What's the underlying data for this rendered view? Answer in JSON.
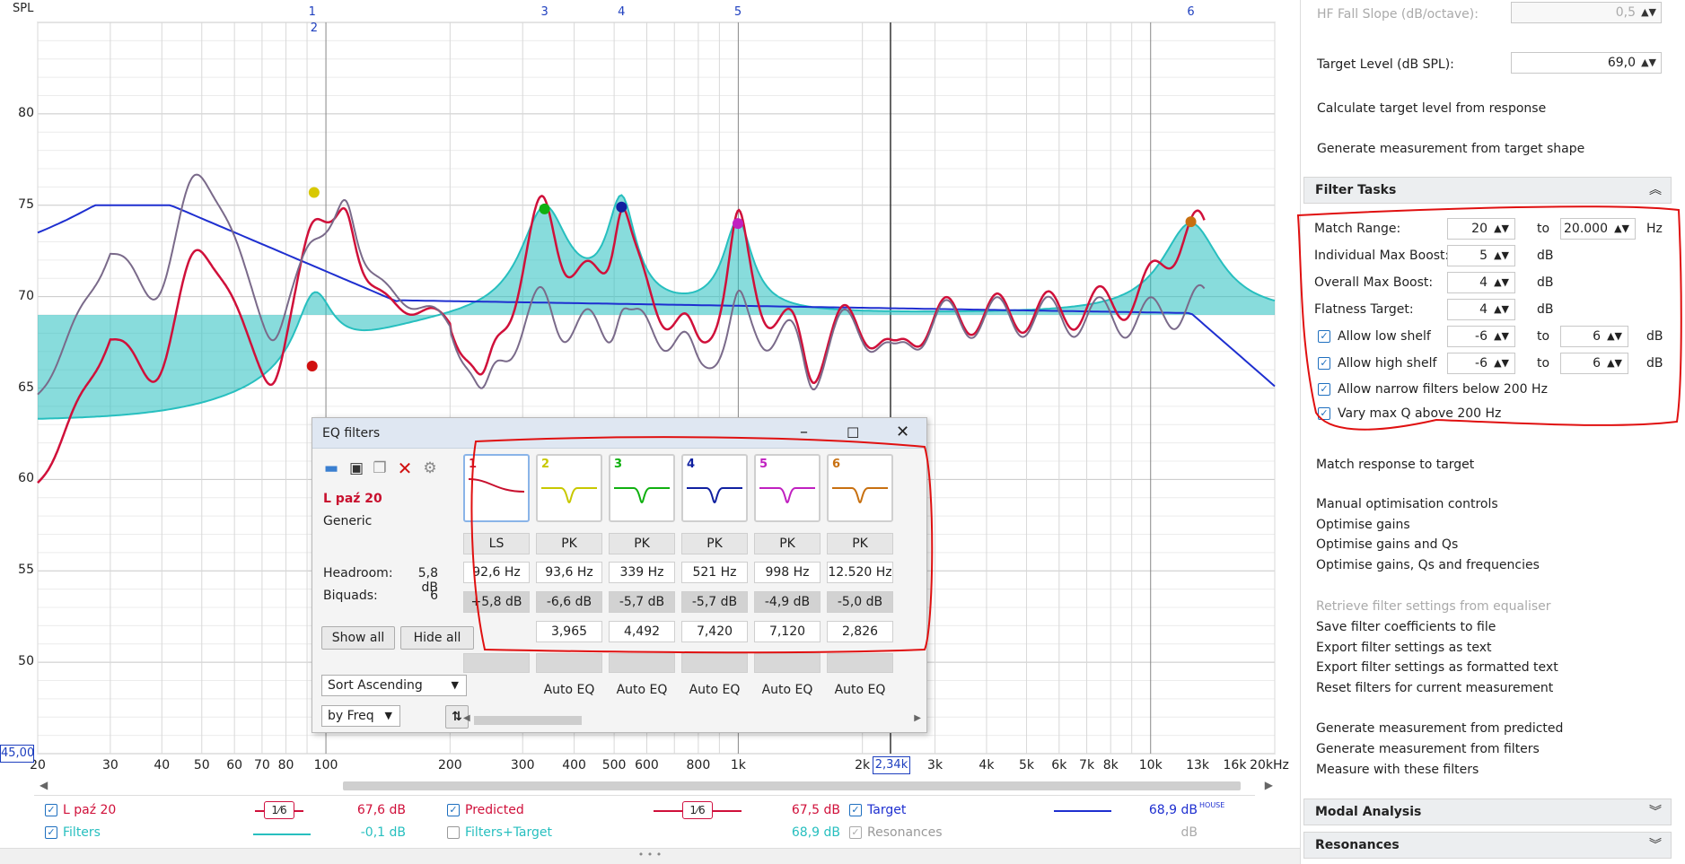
{
  "graph": {
    "y_axis_title": "SPL",
    "y_ticks": [
      "80",
      "75",
      "70",
      "65",
      "60",
      "55",
      "50"
    ],
    "y_min_box": "45,00",
    "x_ticks": [
      "20",
      "30",
      "40",
      "50",
      "60",
      "70",
      "80",
      "100",
      "200",
      "300",
      "400",
      "500",
      "600",
      "800",
      "1k",
      "2k",
      "3k",
      "4k",
      "5k",
      "6k",
      "7k",
      "8k",
      "10k",
      "13k",
      "16k",
      "20kHz"
    ],
    "cursor_x": "2,34k",
    "markers": [
      "1",
      "2",
      "3",
      "4",
      "5",
      "6"
    ],
    "colors": {
      "measurement": "#d0103a",
      "filters": "#27bfbf",
      "target": "#1e2fd0",
      "predicted": "#7a6a8a"
    }
  },
  "legend": {
    "row1": [
      {
        "label": "L paź 20",
        "checked": true,
        "smoothing": "1⁄6",
        "value": "67,6 dB",
        "color": "#d0103a"
      },
      {
        "label": "Predicted",
        "checked": true,
        "smoothing": "1⁄6",
        "value": "67,5 dB",
        "color": "#d0103a"
      },
      {
        "label": "Target",
        "checked": true,
        "value": "68,9 dB",
        "suffix": "HOUSE",
        "color": "#1e2fd0"
      }
    ],
    "row2": [
      {
        "label": "Filters",
        "checked": true,
        "value": "-0,1 dB",
        "color": "#27bfbf"
      },
      {
        "label": "Filters+Target",
        "checked": false,
        "value": "68,9 dB",
        "color": "#27bfbf"
      },
      {
        "label": "Resonances",
        "checked": true,
        "value": "dB",
        "color": "#999999"
      }
    ]
  },
  "eq_dialog": {
    "title": "EQ filters",
    "meas_name": "L paź 20",
    "meas_type": "Generic",
    "headroom_label": "Headroom:",
    "headroom_value": "5,8 dB",
    "biquads_label": "Biquads:",
    "biquads_value": "6",
    "show_all": "Show all",
    "hide_all": "Hide all",
    "sort_select": "Sort Ascending",
    "by_select": "by Freq",
    "filters": [
      {
        "num": "1",
        "color": "#c8102e",
        "type": "LS",
        "freq": "92,6 Hz",
        "gain": "+5,8 dB",
        "q": "",
        "auto": ""
      },
      {
        "num": "2",
        "color": "#c8c800",
        "type": "PK",
        "freq": "93,6 Hz",
        "gain": "-6,6 dB",
        "q": "3,965",
        "auto": "Auto EQ"
      },
      {
        "num": "3",
        "color": "#10b010",
        "type": "PK",
        "freq": "339 Hz",
        "gain": "-5,7 dB",
        "q": "4,492",
        "auto": "Auto EQ"
      },
      {
        "num": "4",
        "color": "#1020a0",
        "type": "PK",
        "freq": "521 Hz",
        "gain": "-5,7 dB",
        "q": "7,420",
        "auto": "Auto EQ"
      },
      {
        "num": "5",
        "color": "#c020c0",
        "type": "PK",
        "freq": "998 Hz",
        "gain": "-4,9 dB",
        "q": "7,120",
        "auto": "Auto EQ"
      },
      {
        "num": "6",
        "color": "#c87010",
        "type": "PK",
        "freq": "12.520 Hz",
        "gain": "-5,0 dB",
        "q": "2,826",
        "auto": "Auto EQ"
      }
    ]
  },
  "right_panel": {
    "hf_fall_label": "HF Fall Slope (dB/octave):",
    "hf_fall_value": "0,5",
    "target_level_label": "Target Level (dB SPL):",
    "target_level_value": "69,0",
    "calc_target": "Calculate target level from response",
    "gen_from_target": "Generate measurement from target shape",
    "filter_tasks": "Filter Tasks",
    "match_range_label": "Match Range:",
    "match_from": "20",
    "to1": "to",
    "match_to": "20.000",
    "hz": "Hz",
    "ind_boost_label": "Individual Max Boost:",
    "ind_boost": "5",
    "overall_boost_label": "Overall Max Boost:",
    "overall_boost": "4",
    "flatness_label": "Flatness Target:",
    "flatness": "4",
    "db": "dB",
    "low_shelf_label": "Allow low shelf",
    "low_from": "-6",
    "low_to": "6",
    "high_shelf_label": "Allow high shelf",
    "high_from": "-6",
    "high_to": "6",
    "narrow_label": "Allow narrow filters below 200 Hz",
    "vary_q_label": "Vary max Q above 200 Hz",
    "match_response": "Match response to target",
    "manual_opt": "Manual optimisation controls",
    "opt_gains": "Optimise gains",
    "opt_gains_q": "Optimise gains and Qs",
    "opt_gains_q_f": "Optimise gains, Qs and frequencies",
    "retrieve": "Retrieve filter settings from equaliser",
    "save_coeffs": "Save filter coefficients to file",
    "export_text": "Export filter settings as text",
    "export_fmt": "Export filter settings as formatted text",
    "reset": "Reset filters for current measurement",
    "gen_predicted": "Generate measurement from predicted",
    "gen_filters": "Generate measurement from filters",
    "measure_with": "Measure with these filters",
    "modal": "Modal Analysis",
    "resonances": "Resonances"
  }
}
